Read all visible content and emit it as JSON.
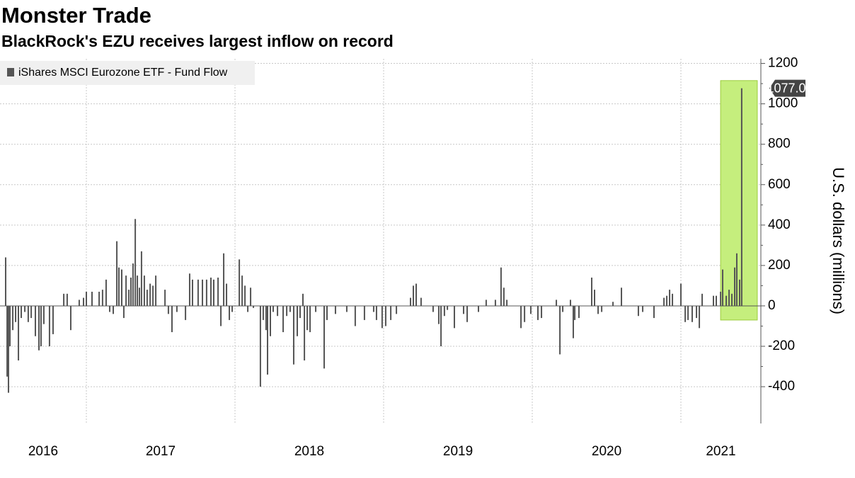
{
  "chart_data": {
    "type": "bar",
    "title": "Monster Trade",
    "subtitle": "BlackRock's EZU receives largest inflow on record",
    "y_axis_label": "U.S. dollars (millions)",
    "legend_position": "top-left",
    "grid": true,
    "xlim": [
      2016.419,
      2021.538
    ],
    "xticks": [
      2017,
      2018,
      2019,
      2020,
      2021
    ],
    "x_labels": [
      "2016",
      "2017",
      "2018",
      "2019",
      "2020",
      "2021"
    ],
    "ylim": [
      -582,
      1223
    ],
    "yticks": [
      -400,
      -200,
      0,
      200,
      400,
      600,
      800,
      1000,
      1200
    ],
    "highlight": {
      "xlim": [
        2021.267,
        2021.514
      ],
      "ylim": [
        -70,
        1115
      ],
      "color": "#c5ee7d"
    },
    "x": [
      2016.457,
      2016.467,
      2016.476,
      2016.486,
      2016.505,
      2016.524,
      2016.543,
      2016.562,
      2016.586,
      2016.609,
      2016.629,
      2016.657,
      2016.681,
      2016.695,
      2016.714,
      2016.752,
      2016.776,
      2016.848,
      2016.871,
      2016.895,
      2016.952,
      2016.981,
      2017.0,
      2017.038,
      2017.086,
      2017.109,
      2017.133,
      2017.157,
      2017.181,
      2017.205,
      2017.219,
      2017.238,
      2017.252,
      2017.267,
      2017.286,
      2017.3,
      2017.314,
      2017.329,
      2017.343,
      2017.357,
      2017.371,
      2017.39,
      2017.409,
      2017.429,
      2017.448,
      2017.467,
      2017.529,
      2017.552,
      2017.576,
      2017.609,
      2017.667,
      2017.695,
      2017.714,
      2017.752,
      2017.781,
      2017.809,
      2017.838,
      2017.857,
      2017.886,
      2017.905,
      2017.924,
      2017.943,
      2017.962,
      2017.981,
      2018.029,
      2018.048,
      2018.067,
      2018.086,
      2018.105,
      2018.124,
      2018.171,
      2018.19,
      2018.209,
      2018.219,
      2018.238,
      2018.257,
      2018.286,
      2018.324,
      2018.348,
      2018.371,
      2018.395,
      2018.419,
      2018.438,
      2018.457,
      2018.467,
      2018.486,
      2018.505,
      2018.543,
      2018.6,
      2018.619,
      2018.676,
      2018.752,
      2018.809,
      2018.871,
      2018.933,
      2018.952,
      2018.99,
      2019.014,
      2019.048,
      2019.086,
      2019.181,
      2019.2,
      2019.219,
      2019.252,
      2019.333,
      2019.371,
      2019.386,
      2019.409,
      2019.429,
      2019.476,
      2019.538,
      2019.562,
      2019.638,
      2019.69,
      2019.752,
      2019.79,
      2019.809,
      2019.829,
      2019.924,
      2019.948,
      2019.99,
      2020.038,
      2020.062,
      2020.162,
      2020.186,
      2020.205,
      2020.257,
      2020.276,
      2020.286,
      2020.314,
      2020.4,
      2020.419,
      2020.443,
      2020.467,
      2020.543,
      2020.6,
      2020.714,
      2020.743,
      2020.819,
      2020.886,
      2020.905,
      2020.924,
      2020.943,
      2021.0,
      2021.029,
      2021.048,
      2021.076,
      2021.105,
      2021.124,
      2021.143,
      2021.219,
      2021.238,
      2021.267,
      2021.281,
      2021.305,
      2021.324,
      2021.343,
      2021.362,
      2021.376,
      2021.395,
      2021.409
    ],
    "series": [
      {
        "name": "iShares MSCI Eurozone ETF - Fund Flow",
        "color": "#555555",
        "values": [
          240,
          -350,
          -430,
          -200,
          -120,
          -80,
          -270,
          -60,
          -30,
          -80,
          -60,
          -150,
          -220,
          -200,
          -90,
          -200,
          -140,
          60,
          60,
          -120,
          30,
          40,
          70,
          70,
          70,
          80,
          130,
          -30,
          -40,
          320,
          190,
          180,
          -60,
          150,
          80,
          140,
          210,
          430,
          150,
          90,
          270,
          150,
          80,
          110,
          100,
          150,
          80,
          -40,
          -130,
          -30,
          -70,
          160,
          130,
          130,
          130,
          130,
          140,
          130,
          140,
          -100,
          260,
          110,
          -70,
          -30,
          230,
          150,
          100,
          -30,
          90,
          -10,
          -400,
          -70,
          -120,
          -340,
          -150,
          -30,
          -50,
          -130,
          -50,
          -30,
          -290,
          -150,
          -60,
          60,
          -270,
          -120,
          -130,
          -30,
          -310,
          -70,
          -40,
          -30,
          -100,
          -70,
          -30,
          -70,
          -110,
          -100,
          -70,
          -40,
          40,
          100,
          110,
          40,
          -30,
          -90,
          -200,
          -50,
          -20,
          -110,
          -40,
          -80,
          -30,
          30,
          30,
          190,
          90,
          30,
          -110,
          -80,
          -40,
          -70,
          -60,
          30,
          -240,
          -30,
          30,
          -160,
          -70,
          -60,
          140,
          80,
          -40,
          -30,
          20,
          90,
          -50,
          -30,
          -60,
          40,
          50,
          80,
          60,
          110,
          -80,
          -70,
          -80,
          -60,
          -110,
          60,
          50,
          50,
          70,
          180,
          50,
          80,
          60,
          190,
          260,
          130,
          1077.09
        ]
      }
    ]
  }
}
